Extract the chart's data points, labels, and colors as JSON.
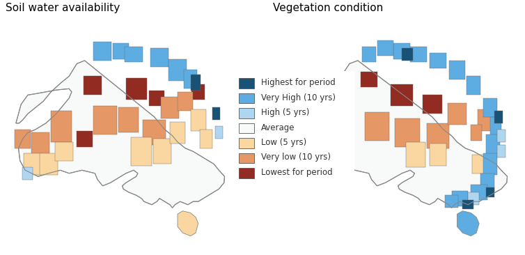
{
  "title_left": "Soil water availability",
  "title_right": "Vegetation condition",
  "legend_items": [
    {
      "label": "Highest for period",
      "color": "#1a5276"
    },
    {
      "label": "Very High (10 yrs)",
      "color": "#5dade2"
    },
    {
      "label": "High (5 yrs)",
      "color": "#aed6f1"
    },
    {
      "label": "Average",
      "color": "#f8f9f9"
    },
    {
      "label": "Low (5 yrs)",
      "color": "#fad7a0"
    },
    {
      "label": "Very low (10 yrs)",
      "color": "#e59866"
    },
    {
      "label": "Lowest for period",
      "color": "#922b21"
    }
  ],
  "background_color": "#ffffff",
  "title_fontsize": 11,
  "legend_fontsize": 8.5,
  "lon_min": 112,
  "lon_max": 155,
  "lat_min": -45,
  "lat_max": -9,
  "aus_lon": [
    113.2,
    114.2,
    115.5,
    117.0,
    119.0,
    121.0,
    123.5,
    124.0,
    123.5,
    122.0,
    121.0,
    119.0,
    117.0,
    115.5,
    114.5,
    113.7,
    114.0,
    115.0,
    117.5,
    119.5,
    121.8,
    123.5,
    126.0,
    128.5,
    129.0,
    130.0,
    131.5,
    132.5,
    133.5,
    134.5,
    136.0,
    136.8,
    136.5,
    135.5,
    134.5,
    133.8,
    134.0,
    135.0,
    136.5,
    137.5,
    138.0,
    139.5,
    140.5,
    141.0,
    142.0,
    143.0,
    143.5,
    144.0,
    145.0,
    146.5,
    147.5,
    148.5,
    149.5,
    150.5,
    151.5,
    152.5,
    153.5,
    153.6,
    152.5,
    151.5,
    150.5,
    149.5,
    148.5,
    147.5,
    146.0,
    144.5,
    143.5,
    142.0,
    141.0,
    140.0,
    138.5,
    137.0,
    135.5,
    134.0,
    132.5,
    131.0,
    129.5,
    128.0,
    126.5,
    125.0,
    123.5,
    122.0,
    120.0,
    118.5,
    117.0,
    115.5,
    114.5,
    113.8,
    113.2
  ],
  "aus_lat": [
    -25.5,
    -22.5,
    -21.0,
    -20.8,
    -20.5,
    -20.2,
    -20.0,
    -20.5,
    -21.5,
    -23.0,
    -24.0,
    -25.5,
    -26.5,
    -27.0,
    -28.0,
    -29.5,
    -31.5,
    -33.0,
    -34.0,
    -33.5,
    -33.0,
    -33.5,
    -33.0,
    -33.5,
    -34.5,
    -35.5,
    -35.0,
    -34.5,
    -34.0,
    -33.5,
    -33.0,
    -33.5,
    -34.0,
    -34.5,
    -35.0,
    -35.5,
    -36.0,
    -36.5,
    -37.0,
    -37.5,
    -38.0,
    -38.5,
    -38.0,
    -37.5,
    -38.0,
    -38.5,
    -39.0,
    -38.5,
    -38.0,
    -38.5,
    -38.0,
    -38.0,
    -37.5,
    -37.0,
    -36.5,
    -36.0,
    -35.0,
    -34.0,
    -33.0,
    -32.0,
    -31.5,
    -31.0,
    -30.5,
    -30.0,
    -29.5,
    -28.5,
    -27.5,
    -26.5,
    -25.5,
    -24.5,
    -23.5,
    -22.5,
    -21.5,
    -20.5,
    -19.5,
    -18.5,
    -17.5,
    -16.5,
    -15.5,
    -16.0,
    -18.0,
    -19.0,
    -20.5,
    -22.0,
    -23.0,
    -24.0,
    -25.0,
    -25.5,
    -25.5
  ],
  "tas_lon": [
    144.5,
    145.5,
    147.0,
    148.0,
    148.5,
    148.0,
    147.0,
    145.5,
    144.5,
    144.5
  ],
  "tas_lat": [
    -40.0,
    -39.5,
    -39.8,
    -40.5,
    -41.5,
    -43.0,
    -43.5,
    -43.0,
    -42.0,
    -40.0
  ],
  "colors": {
    "highest": "#1a5276",
    "very_high": "#5dade2",
    "high": "#aed6f1",
    "average": "#f8f9f9",
    "low": "#fad7a0",
    "very_low": "#e59866",
    "lowest": "#922b21"
  },
  "regions_left": [
    [
      128.0,
      -19.5,
      3.5,
      3.0,
      "lowest"
    ],
    [
      136.5,
      -20.0,
      4.0,
      3.5,
      "lowest"
    ],
    [
      140.5,
      -21.5,
      3.0,
      2.5,
      "lowest"
    ],
    [
      126.5,
      -28.0,
      3.0,
      2.5,
      "lowest"
    ],
    [
      148.5,
      -20.5,
      2.5,
      2.5,
      "lowest"
    ],
    [
      122.0,
      -26.0,
      4.0,
      5.0,
      "very_low"
    ],
    [
      118.0,
      -29.0,
      3.5,
      4.0,
      "very_low"
    ],
    [
      130.5,
      -25.0,
      4.5,
      4.5,
      "very_low"
    ],
    [
      135.0,
      -25.0,
      4.0,
      4.0,
      "very_low"
    ],
    [
      140.0,
      -27.0,
      4.5,
      4.0,
      "very_low"
    ],
    [
      143.0,
      -23.0,
      3.5,
      3.5,
      "very_low"
    ],
    [
      146.0,
      -22.0,
      3.0,
      3.0,
      "very_low"
    ],
    [
      114.5,
      -28.0,
      3.0,
      3.0,
      "very_low"
    ],
    [
      116.5,
      -32.0,
      3.5,
      3.5,
      "low"
    ],
    [
      119.5,
      -32.0,
      3.5,
      3.5,
      "low"
    ],
    [
      122.5,
      -30.0,
      3.5,
      3.0,
      "low"
    ],
    [
      137.5,
      -30.0,
      4.0,
      4.5,
      "low"
    ],
    [
      141.5,
      -30.0,
      3.5,
      4.0,
      "low"
    ],
    [
      144.5,
      -27.0,
      3.0,
      3.5,
      "low"
    ],
    [
      148.5,
      -25.0,
      3.0,
      3.5,
      "low"
    ],
    [
      150.0,
      -28.0,
      2.5,
      3.0,
      "low"
    ],
    [
      130.0,
      -14.0,
      3.5,
      3.0,
      "very_high"
    ],
    [
      133.5,
      -14.0,
      3.0,
      2.5,
      "very_high"
    ],
    [
      136.0,
      -14.5,
      3.5,
      2.5,
      "very_high"
    ],
    [
      141.0,
      -15.0,
      3.5,
      3.0,
      "very_high"
    ],
    [
      144.5,
      -17.0,
      3.5,
      3.5,
      "very_high"
    ],
    [
      147.0,
      -18.5,
      2.5,
      3.0,
      "very_high"
    ],
    [
      115.5,
      -33.5,
      2.0,
      2.0,
      "high"
    ],
    [
      152.5,
      -27.0,
      1.5,
      2.0,
      "high"
    ],
    [
      148.0,
      -19.0,
      2.0,
      2.5,
      "highest"
    ],
    [
      152.0,
      -24.0,
      1.5,
      2.0,
      "highest"
    ]
  ],
  "regions_right": [
    [
      134.5,
      -21.0,
      4.0,
      3.5,
      "lowest"
    ],
    [
      140.0,
      -22.5,
      3.5,
      3.0,
      "lowest"
    ],
    [
      128.5,
      -18.5,
      3.0,
      2.5,
      "lowest"
    ],
    [
      130.0,
      -26.0,
      4.5,
      4.5,
      "very_low"
    ],
    [
      135.5,
      -27.0,
      4.5,
      4.5,
      "very_low"
    ],
    [
      141.0,
      -27.5,
      4.0,
      4.0,
      "very_low"
    ],
    [
      144.5,
      -24.0,
      3.5,
      3.5,
      "very_low"
    ],
    [
      121.5,
      -25.5,
      4.0,
      4.0,
      "very_low"
    ],
    [
      118.0,
      -28.5,
      3.5,
      4.0,
      "very_low"
    ],
    [
      149.5,
      -25.0,
      2.5,
      3.5,
      "very_low"
    ],
    [
      148.0,
      -27.0,
      2.0,
      2.5,
      "very_low"
    ],
    [
      137.0,
      -30.5,
      3.5,
      4.0,
      "low"
    ],
    [
      141.0,
      -30.5,
      3.0,
      3.5,
      "low"
    ],
    [
      116.0,
      -31.5,
      3.5,
      3.5,
      "low"
    ],
    [
      120.0,
      -31.0,
      3.5,
      3.0,
      "low"
    ],
    [
      148.5,
      -32.0,
      2.5,
      3.0,
      "low"
    ],
    [
      150.5,
      -23.0,
      2.5,
      3.0,
      "very_high"
    ],
    [
      151.5,
      -26.0,
      2.0,
      3.0,
      "very_high"
    ],
    [
      151.0,
      -29.0,
      2.5,
      3.5,
      "very_high"
    ],
    [
      150.5,
      -32.0,
      2.5,
      3.5,
      "very_high"
    ],
    [
      150.0,
      -35.0,
      2.5,
      3.0,
      "very_high"
    ],
    [
      148.5,
      -36.5,
      3.0,
      2.5,
      "very_high"
    ],
    [
      145.0,
      -37.5,
      3.0,
      2.5,
      "very_high"
    ],
    [
      143.5,
      -38.0,
      2.5,
      2.0,
      "very_high"
    ],
    [
      147.5,
      -19.5,
      2.5,
      3.0,
      "very_high"
    ],
    [
      144.5,
      -17.0,
      3.0,
      3.0,
      "very_high"
    ],
    [
      141.0,
      -15.5,
      3.0,
      2.5,
      "very_high"
    ],
    [
      137.5,
      -14.5,
      3.0,
      2.5,
      "very_high"
    ],
    [
      134.5,
      -14.0,
      3.0,
      2.5,
      "very_high"
    ],
    [
      131.5,
      -13.5,
      3.0,
      2.5,
      "very_high"
    ],
    [
      128.5,
      -14.5,
      2.5,
      2.5,
      "very_high"
    ],
    [
      152.5,
      -27.5,
      1.5,
      2.0,
      "high"
    ],
    [
      152.5,
      -30.0,
      1.5,
      2.0,
      "high"
    ],
    [
      147.5,
      -37.5,
      2.0,
      2.0,
      "high"
    ],
    [
      152.0,
      -24.5,
      1.5,
      2.0,
      "highest"
    ],
    [
      150.5,
      -36.5,
      1.5,
      1.5,
      "highest"
    ],
    [
      146.5,
      -38.5,
      2.0,
      1.5,
      "highest"
    ],
    [
      135.5,
      -14.5,
      2.0,
      2.0,
      "highest"
    ]
  ],
  "tas_color_left": "#fad7a0",
  "tas_color_right": "#5dade2"
}
